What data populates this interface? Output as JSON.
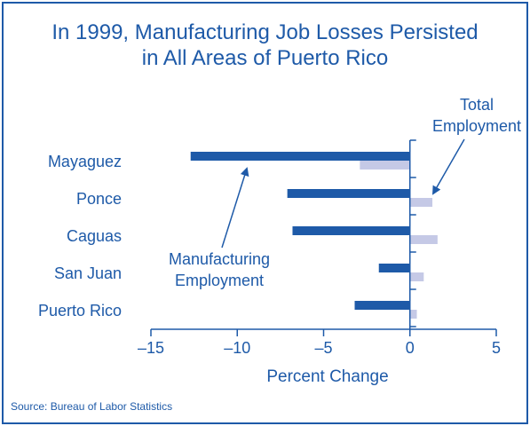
{
  "title_line1": "In 1999, Manufacturing Job Losses Persisted",
  "title_line2": "in All Areas of Puerto Rico",
  "source": "Source: Bureau of Labor Statistics",
  "colors": {
    "text": "#1e5aa8",
    "manufacturing": "#1e5aa8",
    "total": "#c5c9e6",
    "axis": "#1e5aa8"
  },
  "chart_data": {
    "type": "bar",
    "orientation": "horizontal",
    "title": "In 1999, Manufacturing Job Losses Persisted in All Areas of Puerto Rico",
    "xlabel": "Percent Change",
    "ylabel": "",
    "xlim": [
      -15,
      5
    ],
    "xticks": [
      -15,
      -10,
      -5,
      0,
      5
    ],
    "xtick_labels": [
      "–15",
      "–10",
      "–5",
      "0",
      "5"
    ],
    "categories": [
      "Mayaguez",
      "Ponce",
      "Caguas",
      "San Juan",
      "Puerto Rico"
    ],
    "series": [
      {
        "name": "Manufacturing Employment",
        "values": [
          -12.7,
          -7.1,
          -6.8,
          -1.8,
          -3.2
        ]
      },
      {
        "name": "Total Employment",
        "values": [
          -2.9,
          1.3,
          1.6,
          0.8,
          0.4
        ]
      }
    ],
    "annotations": [
      {
        "series": "Manufacturing Employment",
        "label_line1": "Manufacturing",
        "label_line2": "Employment"
      },
      {
        "series": "Total Employment",
        "label_line1": "Total",
        "label_line2": "Employment"
      }
    ],
    "grid": false,
    "legend": "none"
  }
}
